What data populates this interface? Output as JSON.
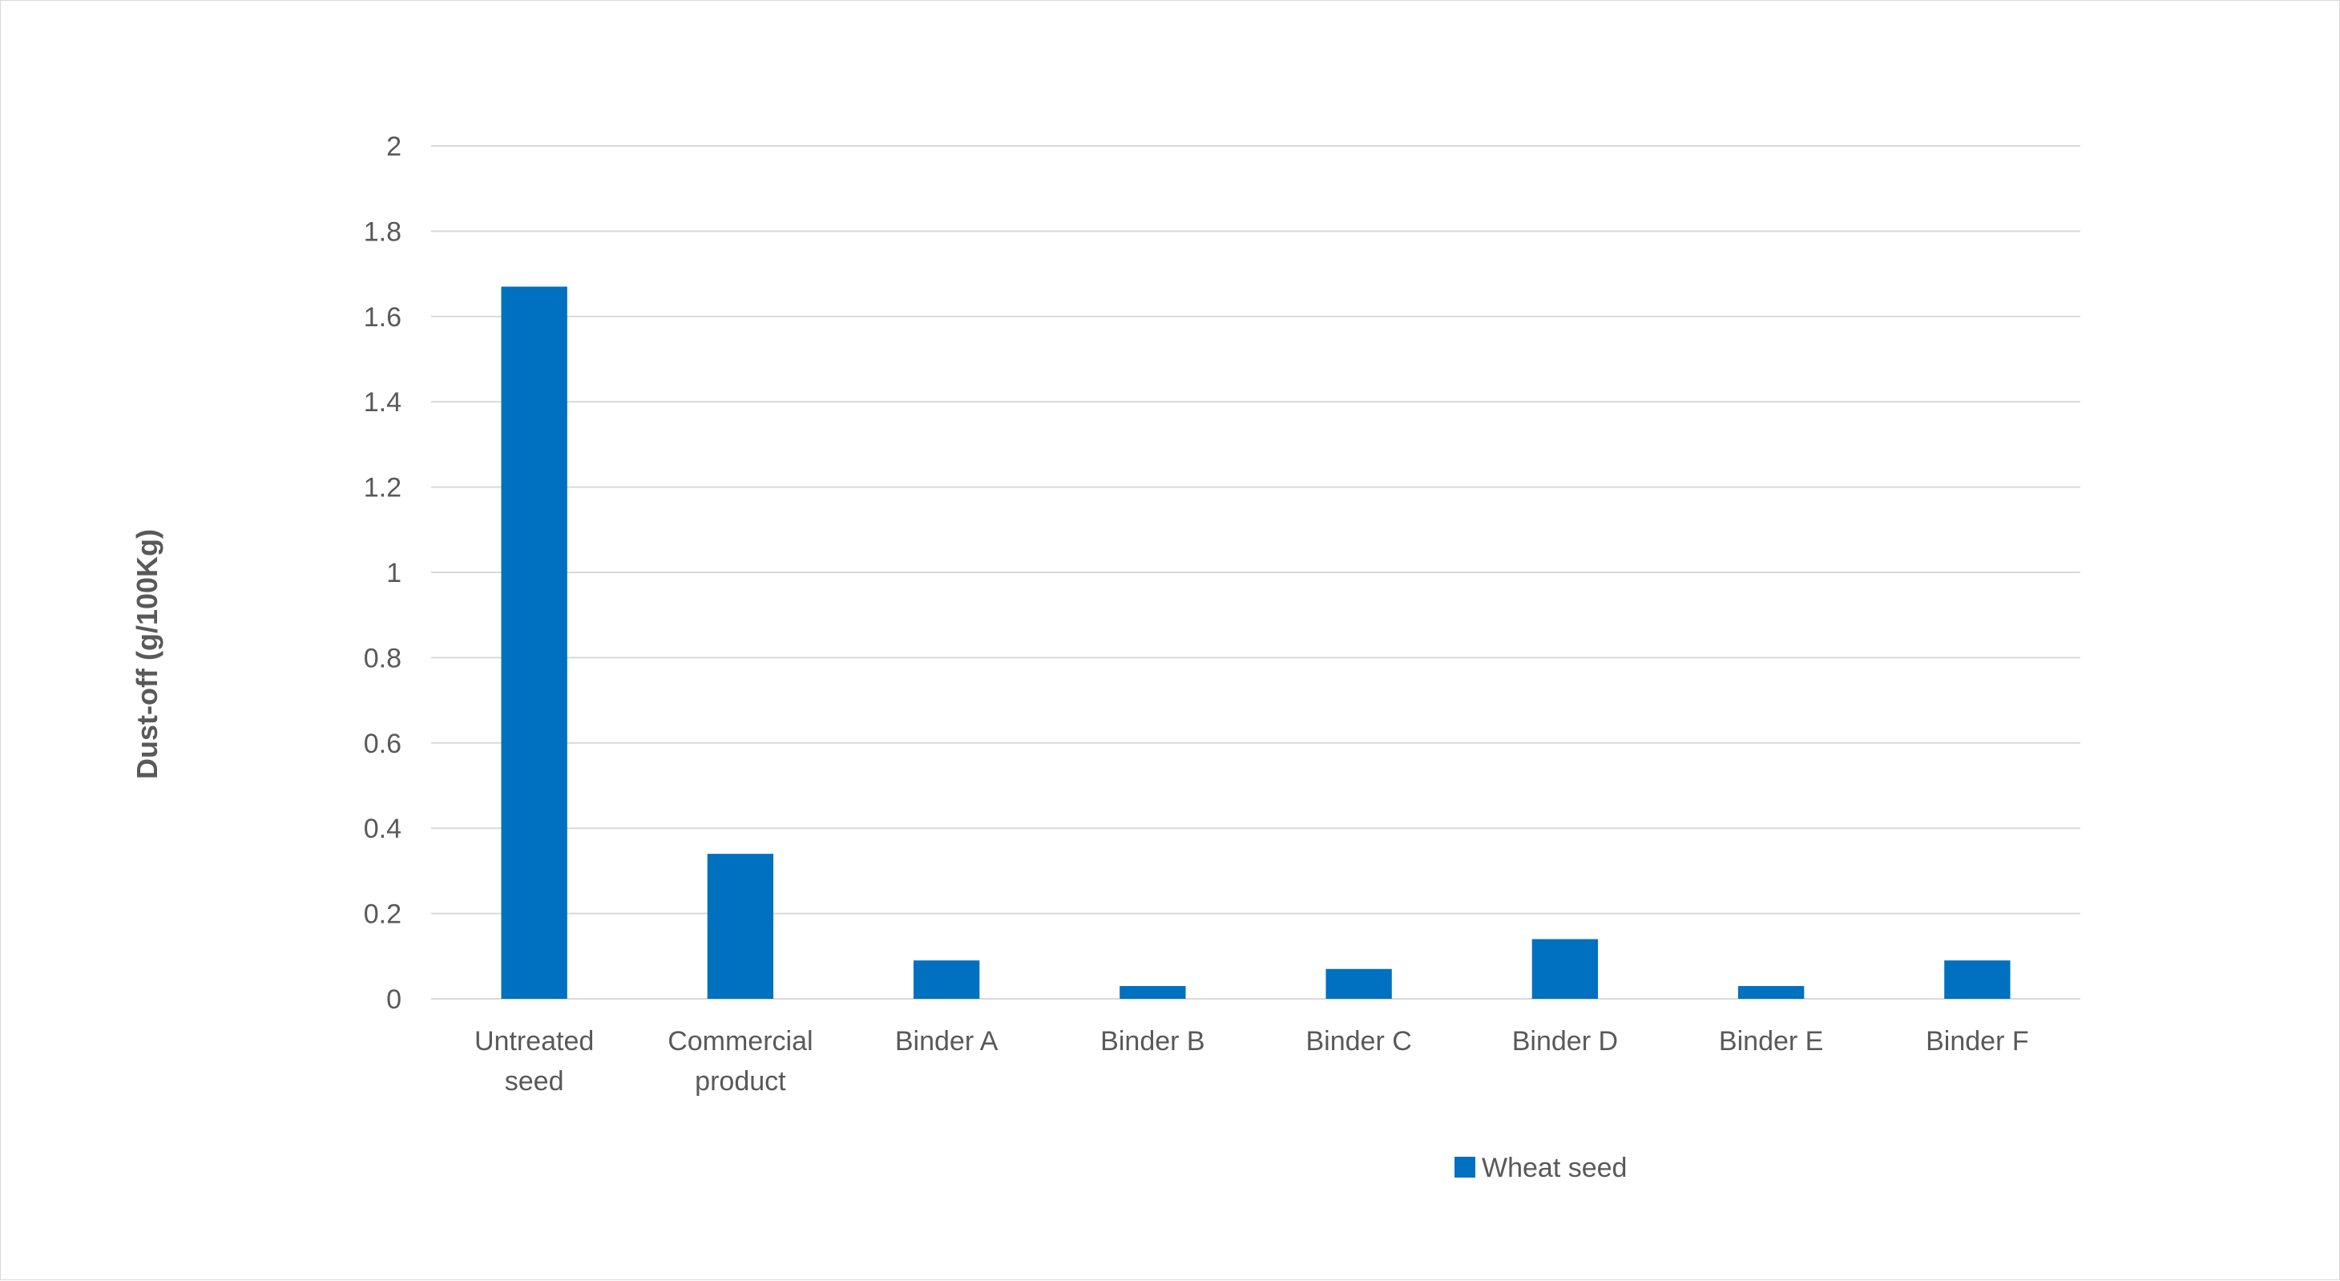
{
  "chart_data": {
    "type": "bar",
    "categories": [
      [
        "Untreated",
        "seed"
      ],
      [
        "Commercial",
        "product"
      ],
      [
        "Binder A"
      ],
      [
        "Binder B"
      ],
      [
        "Binder C"
      ],
      [
        "Binder D"
      ],
      [
        "Binder E"
      ],
      [
        "Binder F"
      ]
    ],
    "series": [
      {
        "name": "Wheat seed",
        "color": "#0070C0",
        "values": [
          1.67,
          0.34,
          0.09,
          0.03,
          0.07,
          0.14,
          0.03,
          0.09
        ]
      }
    ],
    "title": "",
    "xlabel": "",
    "ylabel": "Dust-off (g/100Kg)",
    "ylim": [
      0,
      2
    ],
    "yticks": [
      "0",
      "0.2",
      "0.4",
      "0.6",
      "0.8",
      "1",
      "1.2",
      "1.4",
      "1.6",
      "1.8",
      "2"
    ],
    "grid": true,
    "legend_position": "bottom",
    "gridline_color": "#d9d9d9",
    "text_color": "#595959"
  }
}
